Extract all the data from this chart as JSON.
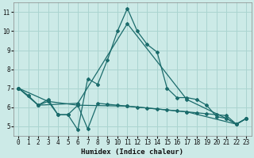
{
  "xlabel": "Humidex (Indice chaleur)",
  "bg_color": "#cceae7",
  "grid_color": "#aad4d0",
  "line_color": "#1a6b6b",
  "xlim": [
    -0.5,
    23.5
  ],
  "ylim": [
    4.5,
    11.5
  ],
  "xticks": [
    0,
    1,
    2,
    3,
    4,
    5,
    6,
    7,
    8,
    9,
    10,
    11,
    12,
    13,
    14,
    15,
    16,
    17,
    18,
    19,
    20,
    21,
    22,
    23
  ],
  "yticks": [
    5,
    6,
    7,
    8,
    9,
    10,
    11
  ],
  "series1": [
    [
      0,
      7.0
    ],
    [
      1,
      6.6
    ],
    [
      2,
      6.1
    ],
    [
      3,
      6.4
    ],
    [
      4,
      5.6
    ],
    [
      5,
      5.6
    ],
    [
      6,
      4.8
    ],
    [
      7,
      7.5
    ],
    [
      8,
      7.2
    ],
    [
      9,
      8.5
    ],
    [
      10,
      10.0
    ],
    [
      11,
      11.2
    ],
    [
      12,
      10.0
    ],
    [
      13,
      9.3
    ],
    [
      14,
      8.9
    ],
    [
      15,
      7.0
    ],
    [
      16,
      6.5
    ],
    [
      17,
      6.5
    ],
    [
      18,
      6.4
    ],
    [
      19,
      6.1
    ],
    [
      20,
      5.5
    ],
    [
      21,
      5.4
    ],
    [
      22,
      5.1
    ],
    [
      23,
      5.4
    ]
  ],
  "series2": [
    [
      0,
      7.0
    ],
    [
      1,
      6.6
    ],
    [
      2,
      6.1
    ],
    [
      3,
      6.3
    ],
    [
      4,
      5.6
    ],
    [
      5,
      5.6
    ],
    [
      6,
      6.1
    ],
    [
      7,
      4.85
    ],
    [
      8,
      6.2
    ],
    [
      9,
      6.15
    ],
    [
      10,
      6.1
    ],
    [
      11,
      6.05
    ],
    [
      12,
      6.0
    ],
    [
      13,
      5.95
    ],
    [
      14,
      5.9
    ],
    [
      15,
      5.85
    ],
    [
      16,
      5.8
    ],
    [
      17,
      5.75
    ],
    [
      18,
      5.7
    ],
    [
      19,
      5.65
    ],
    [
      20,
      5.6
    ],
    [
      21,
      5.55
    ],
    [
      22,
      5.1
    ],
    [
      23,
      5.4
    ]
  ],
  "series3": [
    [
      0,
      7.0
    ],
    [
      2,
      6.1
    ],
    [
      6,
      6.2
    ],
    [
      11,
      10.4
    ],
    [
      17,
      6.4
    ],
    [
      21,
      5.4
    ],
    [
      22,
      5.1
    ],
    [
      23,
      5.4
    ]
  ],
  "series4": [
    [
      0,
      7.0
    ],
    [
      3,
      6.3
    ],
    [
      6,
      6.1
    ],
    [
      11,
      6.05
    ],
    [
      17,
      5.75
    ],
    [
      22,
      5.1
    ],
    [
      23,
      5.4
    ]
  ]
}
